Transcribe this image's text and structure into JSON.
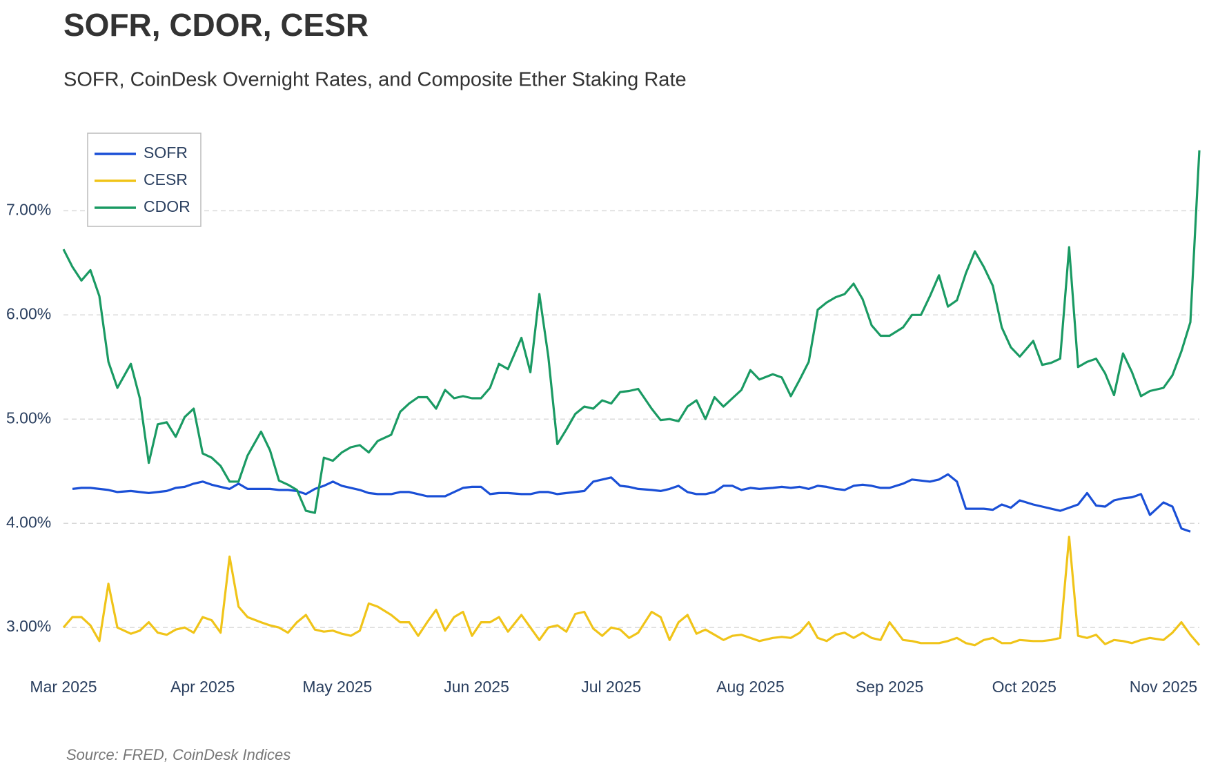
{
  "chart_data": {
    "type": "line",
    "title": "SOFR, CDOR, CESR",
    "subtitle": "SOFR, CoinDesk Overnight Rates, and Composite Ether Staking Rate",
    "source": "Source: FRED, CoinDesk Indices",
    "grid": true,
    "legend": "top-left",
    "xlim": [
      0,
      253
    ],
    "ylim": [
      2.65,
      7.85
    ],
    "xticks": [
      {
        "value": 0,
        "label": "Mar 2025"
      },
      {
        "value": 31,
        "label": "Apr 2025"
      },
      {
        "value": 61,
        "label": "May 2025"
      },
      {
        "value": 92,
        "label": "Jun 2025"
      },
      {
        "value": 122,
        "label": "Jul 2025"
      },
      {
        "value": 153,
        "label": "Aug 2025"
      },
      {
        "value": 184,
        "label": "Sep 2025"
      },
      {
        "value": 214,
        "label": "Oct 2025"
      },
      {
        "value": 245,
        "label": "Nov 2025"
      }
    ],
    "yticks": [
      {
        "value": 3,
        "label": "3.00%"
      },
      {
        "value": 4,
        "label": "4.00%"
      },
      {
        "value": 5,
        "label": "5.00%"
      },
      {
        "value": 6,
        "label": "6.00%"
      },
      {
        "value": 7,
        "label": "7.00%"
      }
    ],
    "x": [
      0,
      2,
      4,
      6,
      8,
      10,
      12,
      15,
      17,
      19,
      21,
      23,
      25,
      27,
      29,
      31,
      33,
      35,
      37,
      39,
      41,
      44,
      46,
      48,
      50,
      52,
      54,
      56,
      58,
      60,
      62,
      64,
      66,
      68,
      70,
      73,
      75,
      77,
      79,
      81,
      83,
      85,
      87,
      89,
      91,
      93,
      95,
      97,
      99,
      102,
      104,
      106,
      108,
      110,
      112,
      114,
      116,
      118,
      120,
      122,
      124,
      126,
      128,
      131,
      133,
      135,
      137,
      139,
      141,
      143,
      145,
      147,
      149,
      151,
      153,
      155,
      158,
      160,
      162,
      164,
      166,
      168,
      170,
      172,
      174,
      176,
      178,
      180,
      182,
      184,
      187,
      189,
      191,
      193,
      195,
      197,
      199,
      201,
      203,
      205,
      207,
      209,
      211,
      213,
      216,
      218,
      220,
      222,
      224,
      226,
      228,
      230,
      232,
      234,
      236,
      238,
      240,
      242,
      245,
      247,
      249,
      251,
      253
    ],
    "series": [
      {
        "name": "SOFR",
        "color": "#1a4fd6",
        "values": [
          null,
          4.33,
          4.34,
          4.34,
          4.33,
          4.32,
          4.3,
          4.31,
          4.3,
          4.29,
          4.3,
          4.31,
          4.34,
          4.35,
          4.38,
          4.4,
          4.37,
          4.35,
          4.33,
          4.38,
          4.33,
          4.33,
          4.33,
          4.32,
          4.32,
          4.31,
          4.28,
          4.33,
          4.36,
          4.4,
          4.36,
          4.34,
          4.32,
          4.29,
          4.28,
          4.28,
          4.3,
          4.3,
          4.28,
          4.26,
          4.26,
          4.26,
          4.3,
          4.34,
          4.35,
          4.35,
          4.28,
          4.29,
          4.29,
          4.28,
          4.28,
          4.3,
          4.3,
          4.28,
          4.29,
          4.3,
          4.31,
          4.4,
          4.42,
          4.44,
          4.36,
          4.35,
          4.33,
          4.32,
          4.31,
          4.33,
          4.36,
          4.3,
          4.28,
          4.28,
          4.3,
          4.36,
          4.36,
          4.32,
          4.34,
          4.33,
          4.34,
          4.35,
          4.34,
          4.35,
          4.33,
          4.36,
          4.35,
          4.33,
          4.32,
          4.36,
          4.37,
          4.36,
          4.34,
          4.34,
          4.38,
          4.42,
          4.41,
          4.4,
          4.42,
          4.47,
          4.4,
          4.14,
          4.14,
          4.14,
          4.13,
          4.18,
          4.15,
          4.22,
          4.18,
          4.16,
          4.14,
          4.12,
          4.15,
          4.18,
          4.29,
          4.17,
          4.16,
          4.22,
          4.24,
          4.25,
          4.28,
          4.08,
          4.2,
          4.16,
          3.95,
          3.92,
          null
        ]
      },
      {
        "name": "CESR",
        "color": "#f0c419",
        "values": [
          3.0,
          3.1,
          3.1,
          3.02,
          2.87,
          3.42,
          3.0,
          2.94,
          2.97,
          3.05,
          2.95,
          2.93,
          2.98,
          3.0,
          2.95,
          3.1,
          3.07,
          2.95,
          3.68,
          3.2,
          3.1,
          3.05,
          3.02,
          3.0,
          2.95,
          3.05,
          3.12,
          2.98,
          2.96,
          2.97,
          2.94,
          2.92,
          2.97,
          3.23,
          3.2,
          3.12,
          3.05,
          3.05,
          2.92,
          3.05,
          3.17,
          2.97,
          3.1,
          3.15,
          2.92,
          3.05,
          3.05,
          3.1,
          2.96,
          3.12,
          3.0,
          2.88,
          3.0,
          3.02,
          2.96,
          3.13,
          3.15,
          2.99,
          2.92,
          3.0,
          2.98,
          2.9,
          2.95,
          3.15,
          3.1,
          2.88,
          3.05,
          3.12,
          2.94,
          2.98,
          2.93,
          2.88,
          2.92,
          2.93,
          2.9,
          2.87,
          2.9,
          2.91,
          2.9,
          2.95,
          3.05,
          2.9,
          2.87,
          2.93,
          2.95,
          2.9,
          2.95,
          2.9,
          2.88,
          3.05,
          2.88,
          2.87,
          2.85,
          2.85,
          2.85,
          2.87,
          2.9,
          2.85,
          2.83,
          2.88,
          2.9,
          2.85,
          2.85,
          2.88,
          2.87,
          2.87,
          2.88,
          2.9,
          3.87,
          2.92,
          2.9,
          2.93,
          2.84,
          2.88,
          2.87,
          2.85,
          2.88,
          2.9,
          2.88,
          2.95,
          3.05,
          2.93,
          2.83
        ]
      },
      {
        "name": "CDOR",
        "color": "#1a9a63",
        "values": [
          6.63,
          6.46,
          6.33,
          6.43,
          6.18,
          5.55,
          5.3,
          5.53,
          5.2,
          4.58,
          4.95,
          4.97,
          4.83,
          5.02,
          5.1,
          4.67,
          4.63,
          4.55,
          4.4,
          4.4,
          4.65,
          4.88,
          4.7,
          4.41,
          4.37,
          4.32,
          4.12,
          4.1,
          4.63,
          4.6,
          4.68,
          4.73,
          4.75,
          4.68,
          4.79,
          4.85,
          5.07,
          5.15,
          5.21,
          5.21,
          5.1,
          5.28,
          5.2,
          5.22,
          5.2,
          5.2,
          5.3,
          5.53,
          5.48,
          5.78,
          5.45,
          6.2,
          5.6,
          4.76,
          4.9,
          5.05,
          5.12,
          5.1,
          5.18,
          5.15,
          5.26,
          5.27,
          5.29,
          5.1,
          4.99,
          5.0,
          4.98,
          5.12,
          5.18,
          5.0,
          5.21,
          5.12,
          5.2,
          5.28,
          5.47,
          5.38,
          5.43,
          5.4,
          5.22,
          5.38,
          5.55,
          6.05,
          6.12,
          6.17,
          6.2,
          6.3,
          6.15,
          5.9,
          5.8,
          5.8,
          5.88,
          6.0,
          6.0,
          6.18,
          6.38,
          6.08,
          6.14,
          6.4,
          6.61,
          6.46,
          6.28,
          5.88,
          5.69,
          5.6,
          5.75,
          5.52,
          5.54,
          5.58,
          6.65,
          5.5,
          5.55,
          5.58,
          5.44,
          5.23,
          5.63,
          5.45,
          5.22,
          5.27,
          5.3,
          5.42,
          5.65,
          5.93,
          7.58
        ]
      }
    ]
  }
}
